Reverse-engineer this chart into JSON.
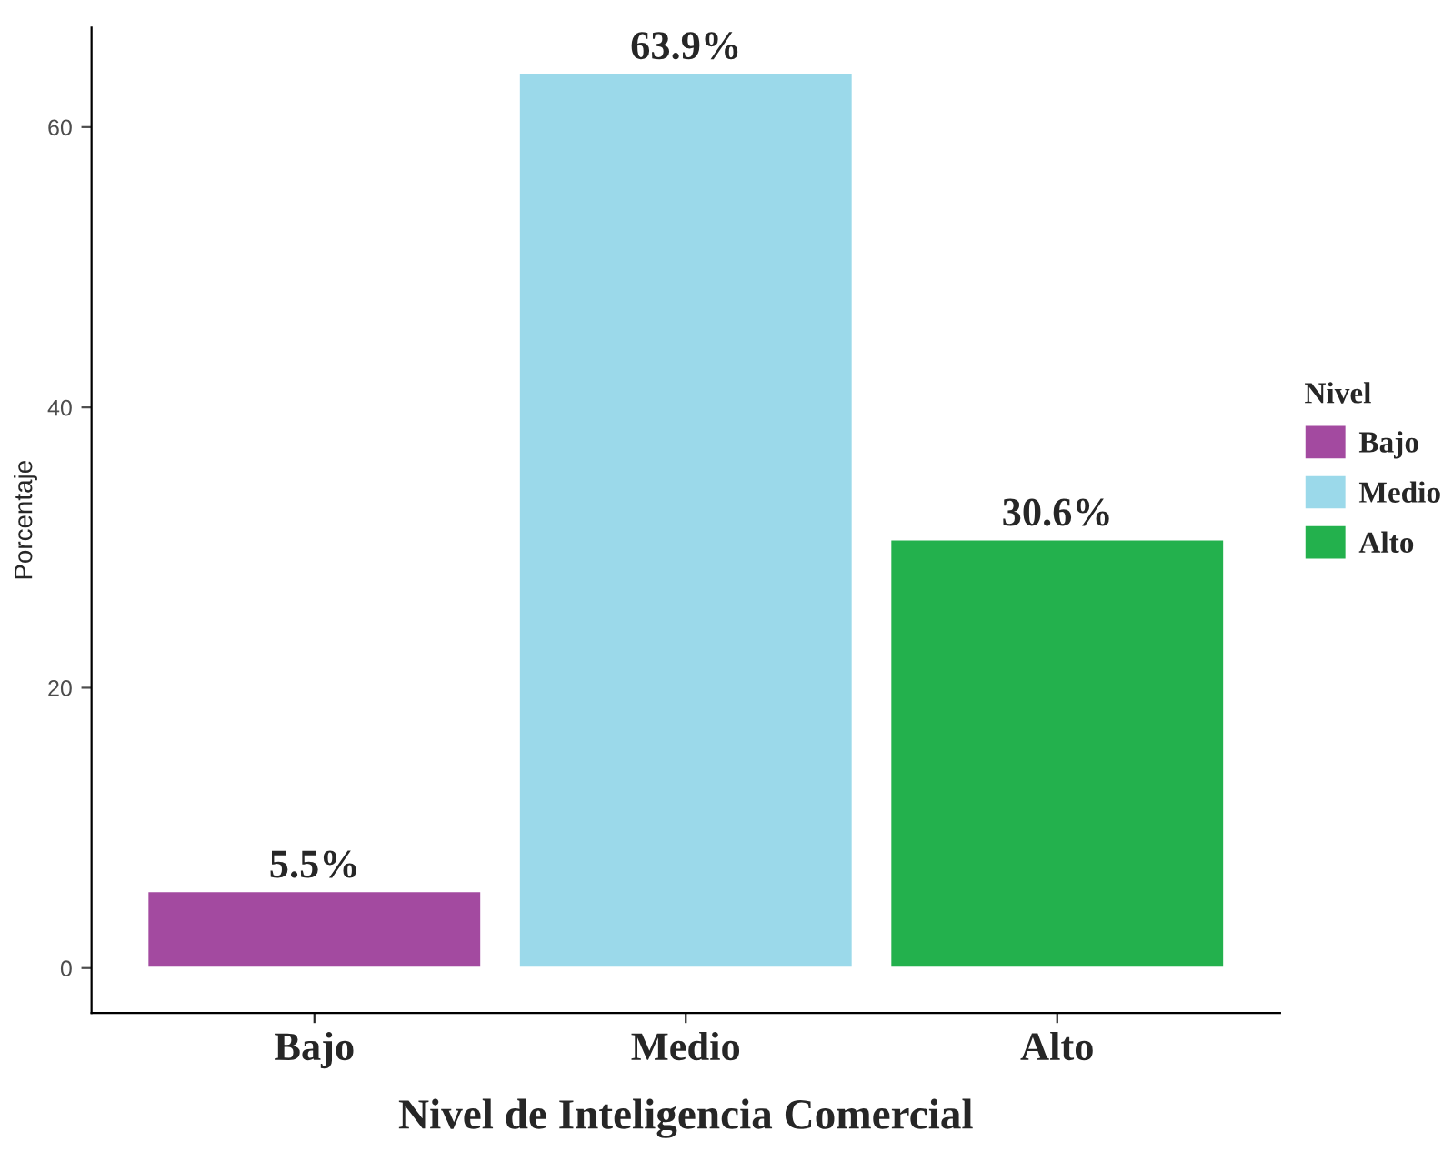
{
  "chart_data": {
    "type": "bar",
    "xlabel": "Nivel de Inteligencia Comercial",
    "ylabel": "Porcentaje",
    "legend_title": "Nivel",
    "categories": [
      "Bajo",
      "Medio",
      "Alto"
    ],
    "series": [
      {
        "name": "Bajo",
        "color": "#a34aa0",
        "values": [
          5.5,
          null,
          null
        ],
        "value_labels": [
          "5.5%",
          null,
          null
        ]
      },
      {
        "name": "Medio",
        "color": "#9bd9ea",
        "values": [
          null,
          63.9,
          null
        ],
        "value_labels": [
          null,
          "63.9%",
          null
        ]
      },
      {
        "name": "Alto",
        "color": "#23b14d",
        "values": [
          null,
          null,
          30.6
        ],
        "value_labels": [
          null,
          null,
          "30.6%"
        ]
      }
    ],
    "ylim": [
      -3.2,
      67.1
    ],
    "yticks": [
      0,
      20,
      40,
      60
    ],
    "grid": false,
    "legend": "right"
  }
}
